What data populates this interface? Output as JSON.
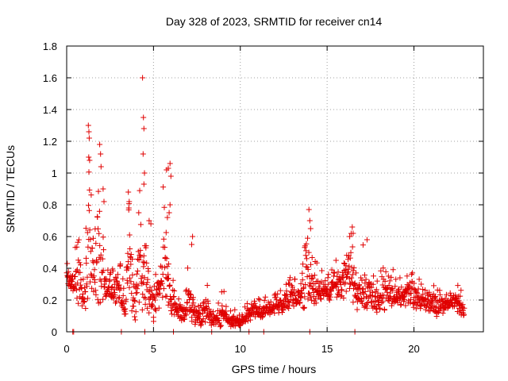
{
  "chart_data": {
    "type": "scatter",
    "title": "Day 328 of 2023, SRMTID for receiver cn14",
    "xlabel": "GPS time / hours",
    "ylabel": "SRMTID / TECUs",
    "xlim": [
      0,
      24
    ],
    "ylim": [
      0,
      1.8
    ],
    "xticks": [
      0,
      5,
      10,
      15,
      20
    ],
    "xtick_labels": [
      "0",
      "5",
      "10",
      "15",
      "20"
    ],
    "yticks": [
      0,
      0.2,
      0.4,
      0.6,
      0.8,
      1.0,
      1.2,
      1.4,
      1.6,
      1.8
    ],
    "ytick_labels": [
      "0",
      "0.2",
      "0.4",
      "0.6",
      "0.8",
      "1",
      "1.2",
      "1.4",
      "1.6",
      "1.8"
    ],
    "grid": true,
    "marker": "plus",
    "color": "#e00000",
    "x_range_of_data": [
      0,
      22.9
    ],
    "envelope": {
      "x": [
        0.0,
        0.25,
        0.5,
        0.7,
        0.9,
        1.05,
        1.25,
        1.4,
        1.6,
        1.8,
        2.0,
        2.2,
        2.4,
        2.6,
        2.8,
        3.0,
        3.2,
        3.4,
        3.6,
        3.8,
        4.0,
        4.2,
        4.4,
        4.6,
        4.8,
        5.0,
        5.2,
        5.4,
        5.6,
        5.8,
        6.0,
        6.2,
        6.4,
        6.6,
        6.8,
        7.0,
        7.2,
        7.4,
        7.7,
        8.0,
        8.3,
        8.6,
        9.0,
        9.3,
        9.6,
        10.0,
        10.4,
        10.8,
        11.2,
        11.6,
        12.0,
        12.5,
        13.0,
        13.5,
        13.9,
        14.2,
        14.6,
        15.0,
        15.4,
        15.8,
        16.2,
        16.5,
        16.8,
        17.2,
        17.6,
        18.0,
        18.4,
        18.7,
        19.0,
        19.4,
        19.8,
        20.2,
        20.6,
        21.0,
        21.4,
        21.8,
        22.2,
        22.5,
        22.8,
        22.9
      ],
      "upper": [
        0.48,
        0.4,
        0.55,
        0.74,
        0.5,
        0.45,
        1.3,
        0.95,
        0.65,
        1.19,
        0.8,
        0.45,
        0.38,
        0.4,
        0.42,
        0.5,
        0.35,
        0.3,
        0.88,
        0.4,
        0.45,
        1.6,
        0.7,
        0.72,
        0.55,
        0.4,
        0.42,
        0.55,
        1.06,
        0.6,
        0.45,
        0.3,
        0.2,
        0.3,
        0.22,
        0.6,
        0.25,
        0.2,
        0.2,
        0.38,
        0.16,
        0.14,
        0.3,
        0.14,
        0.16,
        0.12,
        0.18,
        0.24,
        0.22,
        0.22,
        0.24,
        0.3,
        0.36,
        0.35,
        0.76,
        0.48,
        0.4,
        0.38,
        0.46,
        0.5,
        0.62,
        0.66,
        0.5,
        0.58,
        0.36,
        0.38,
        0.48,
        0.42,
        0.38,
        0.32,
        0.44,
        0.36,
        0.28,
        0.3,
        0.3,
        0.28,
        0.25,
        0.36,
        0.3,
        0.15
      ],
      "lower": [
        0.3,
        0.25,
        0.2,
        0.15,
        0.12,
        0.1,
        0.12,
        0.2,
        0.15,
        0.1,
        0.12,
        0.18,
        0.2,
        0.18,
        0.15,
        0.15,
        0.12,
        0.08,
        0.12,
        0.1,
        0.05,
        0.05,
        0.1,
        0.1,
        0.08,
        0.05,
        0.12,
        0.15,
        0.18,
        0.15,
        0.1,
        0.08,
        0.06,
        0.05,
        0.04,
        0.08,
        0.06,
        0.04,
        0.03,
        0.04,
        0.03,
        0.02,
        0.02,
        0.03,
        0.02,
        0.02,
        0.06,
        0.08,
        0.08,
        0.1,
        0.1,
        0.12,
        0.15,
        0.14,
        0.12,
        0.15,
        0.2,
        0.18,
        0.2,
        0.2,
        0.18,
        0.12,
        0.12,
        0.12,
        0.12,
        0.12,
        0.1,
        0.12,
        0.14,
        0.15,
        0.15,
        0.14,
        0.14,
        0.12,
        0.08,
        0.12,
        0.15,
        0.12,
        0.1,
        0.08
      ]
    },
    "outliers": [
      [
        4.37,
        1.6
      ],
      [
        4.42,
        1.35
      ],
      [
        4.45,
        1.28
      ],
      [
        4.4,
        1.12
      ],
      [
        4.48,
        1.0
      ],
      [
        4.45,
        0.93
      ],
      [
        1.25,
        1.3
      ],
      [
        1.28,
        1.26
      ],
      [
        1.3,
        1.22
      ],
      [
        1.27,
        1.1
      ],
      [
        1.32,
        1.08
      ],
      [
        1.9,
        1.18
      ],
      [
        1.95,
        1.12
      ],
      [
        1.98,
        1.04
      ],
      [
        5.95,
        1.06
      ],
      [
        5.85,
        1.03
      ],
      [
        5.75,
        1.02
      ],
      [
        6.0,
        0.98
      ],
      [
        3.55,
        0.88
      ],
      [
        3.6,
        0.82
      ],
      [
        3.58,
        0.78
      ],
      [
        3.62,
        0.61
      ],
      [
        4.75,
        0.7
      ],
      [
        4.85,
        0.68
      ],
      [
        5.95,
        0.8
      ],
      [
        5.9,
        0.75
      ],
      [
        5.8,
        0.72
      ],
      [
        13.95,
        0.77
      ],
      [
        14.0,
        0.7
      ],
      [
        14.05,
        0.65
      ],
      [
        16.45,
        0.66
      ],
      [
        16.5,
        0.62
      ],
      [
        16.3,
        0.6
      ],
      [
        17.3,
        0.58
      ],
      [
        7.25,
        0.6
      ],
      [
        7.2,
        0.55
      ],
      [
        0.35,
        0.0
      ],
      [
        0.4,
        0.0
      ],
      [
        3.15,
        0.0
      ],
      [
        4.5,
        0.0
      ],
      [
        6.15,
        0.0
      ],
      [
        8.35,
        0.0
      ],
      [
        10.5,
        0.0
      ],
      [
        11.35,
        0.0
      ],
      [
        14.0,
        0.0
      ],
      [
        16.6,
        0.0
      ],
      [
        2.1,
        0.9
      ],
      [
        2.15,
        0.82
      ]
    ],
    "n_points": 1400,
    "seed": 328
  }
}
